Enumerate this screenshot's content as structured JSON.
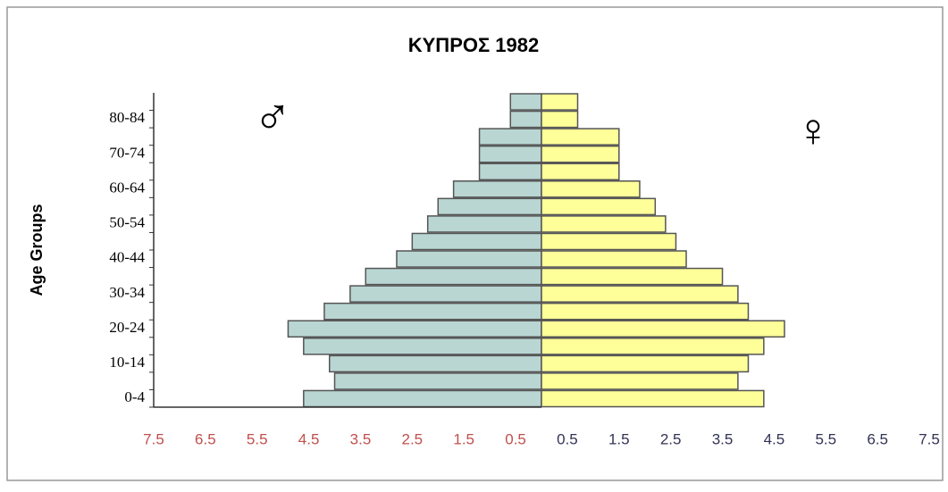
{
  "chart_data": {
    "type": "pyramid",
    "title": "ΚΥΠΡΟΣ 1982",
    "y_label": "Age Groups",
    "categories": [
      "0-4",
      null,
      "10-14",
      null,
      "20-24",
      null,
      "30-34",
      null,
      "40-44",
      null,
      "50-54",
      null,
      "60-64",
      null,
      "70-74",
      null,
      "80-84",
      null
    ],
    "series": [
      {
        "name": "♂",
        "color": "#b9d6d3",
        "values": [
          -4.6,
          -4.0,
          -4.1,
          -4.6,
          -4.9,
          -4.2,
          -3.7,
          -3.4,
          -2.8,
          -2.5,
          -2.2,
          -2.0,
          -1.7,
          -1.2,
          -1.2,
          -1.2,
          -0.6,
          -0.6
        ]
      },
      {
        "name": "♀",
        "color": "#ffff99",
        "values": [
          4.3,
          3.8,
          4.0,
          4.3,
          4.7,
          4.0,
          3.8,
          3.5,
          2.8,
          2.6,
          2.4,
          2.2,
          1.9,
          1.5,
          1.5,
          1.5,
          0.7,
          0.7
        ]
      }
    ],
    "xlim": [
      -7.5,
      7.5
    ],
    "xticks": [
      {
        "value": -7.5,
        "label": "7.5"
      },
      {
        "value": -6.5,
        "label": "6.5"
      },
      {
        "value": -5.5,
        "label": "5.5"
      },
      {
        "value": -4.5,
        "label": "4.5"
      },
      {
        "value": -3.5,
        "label": "3.5"
      },
      {
        "value": -2.5,
        "label": "2.5"
      },
      {
        "value": -1.5,
        "label": "1.5"
      },
      {
        "value": -0.5,
        "label": "0.5"
      },
      0.5,
      1.5,
      2.5,
      3.5,
      4.5,
      5.5,
      6.5,
      7.5
    ]
  }
}
